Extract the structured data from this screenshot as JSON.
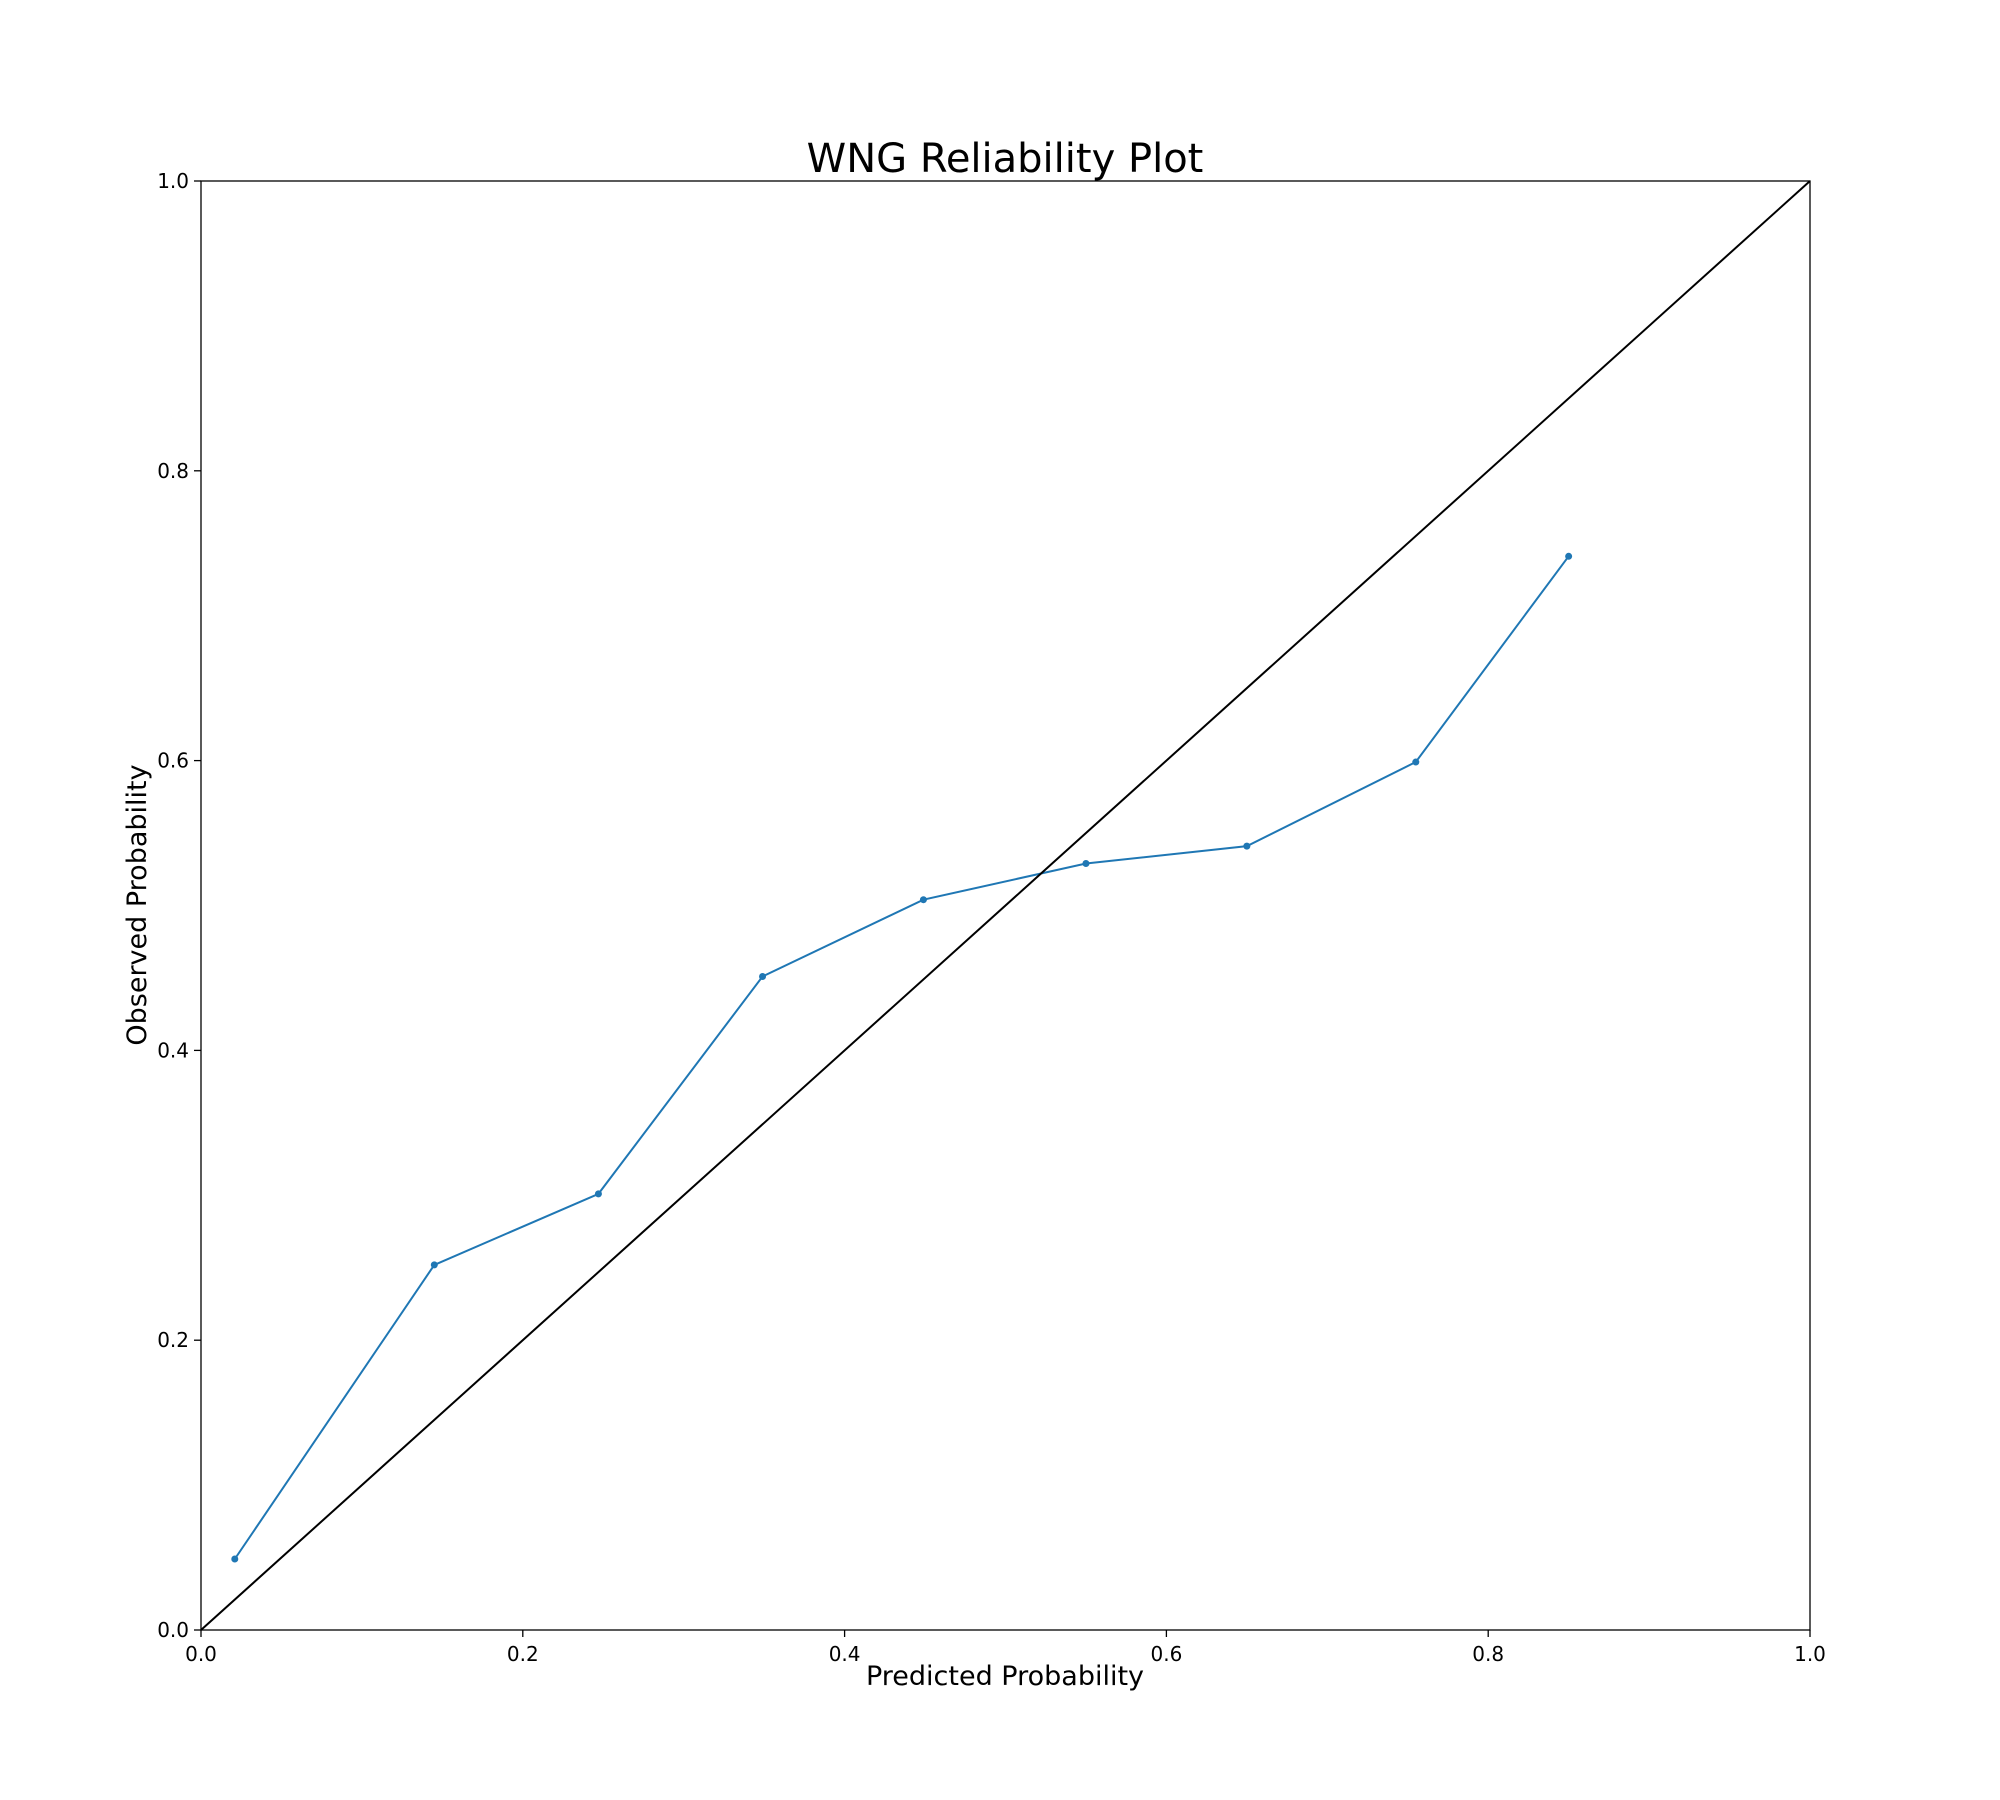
{
  "chart_data": {
    "type": "line",
    "title": "WNG Reliability Plot",
    "xlabel": "Predicted Probability",
    "ylabel": "Observed Probability",
    "xlim": [
      0.0,
      1.0
    ],
    "ylim": [
      0.0,
      1.0
    ],
    "xticks": [
      "0.0",
      "0.2",
      "0.4",
      "0.6",
      "0.8",
      "1.0"
    ],
    "yticks": [
      "0.0",
      "0.2",
      "0.4",
      "0.6",
      "0.8",
      "1.0"
    ],
    "grid": false,
    "legend": "none",
    "series": [
      {
        "x": [
          0.021,
          0.145,
          0.247,
          0.349,
          0.449,
          0.55,
          0.65,
          0.755,
          0.85
        ],
        "y": [
          0.049,
          0.252,
          0.301,
          0.451,
          0.504,
          0.529,
          0.541,
          0.599,
          0.741
        ],
        "color": "#1f77b4",
        "marker": "dot"
      },
      {
        "x": [
          0.0,
          1.0
        ],
        "y": [
          0.0,
          1.0
        ],
        "color": "#000000",
        "marker": "none"
      }
    ]
  }
}
